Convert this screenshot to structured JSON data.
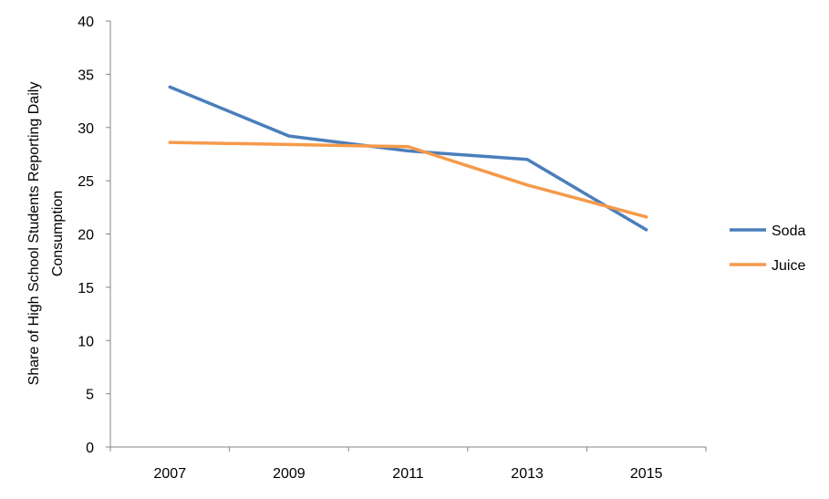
{
  "chart_data": {
    "type": "line",
    "categories": [
      "2007",
      "2009",
      "2011",
      "2013",
      "2015"
    ],
    "series": [
      {
        "name": "Soda",
        "color": "#4a7ebb",
        "values": [
          33.8,
          29.2,
          27.8,
          27.0,
          20.4
        ]
      },
      {
        "name": "Juice",
        "color": "#f59a4a",
        "values": [
          28.6,
          28.4,
          28.2,
          24.6,
          21.6
        ]
      }
    ],
    "title": "",
    "xlabel": "",
    "ylabel_lines": [
      "Share  of High School Students Reporting Daily",
      "Consumption"
    ],
    "ylim": [
      0,
      40
    ],
    "yticks": [
      0,
      5,
      10,
      15,
      20,
      25,
      30,
      35,
      40
    ],
    "grid": false,
    "legend_position": "right"
  }
}
